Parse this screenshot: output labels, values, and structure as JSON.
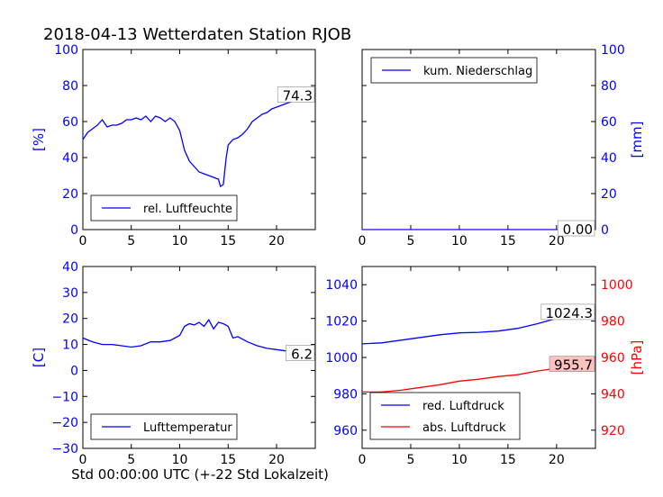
{
  "figure": {
    "title": "2018-04-13 Wetterdaten Station RJOB",
    "xlabel": "Std 00:00:00 UTC (+-22 Std Lokalzeit)"
  },
  "chart_data": [
    {
      "type": "line",
      "panel": "top-left",
      "ylabel": "[%]",
      "ylabel_color": "#0000ff",
      "xlim": [
        0,
        24
      ],
      "ylim": [
        0,
        100
      ],
      "xticks": [
        "0",
        "5",
        "10",
        "15",
        "20"
      ],
      "yticks": [
        "0",
        "20",
        "40",
        "60",
        "80",
        "100"
      ],
      "legend_placement": "lower-left",
      "annotation": "74.3",
      "series": [
        {
          "name": "rel. Luftfeuchte",
          "color": "#0000ff",
          "x": [
            0,
            0.5,
            1,
            1.5,
            2,
            2.5,
            3,
            3.5,
            4,
            4.5,
            5,
            5.5,
            6,
            6.5,
            7,
            7.5,
            8,
            8.5,
            9,
            9.5,
            10,
            10.5,
            11,
            11.5,
            12,
            12.5,
            13,
            13.5,
            14,
            14.2,
            14.5,
            14.8,
            15,
            15.5,
            16,
            16.5,
            17,
            17.5,
            18,
            18.5,
            19,
            19.5,
            20,
            20.5,
            21,
            21.5,
            22,
            22.5,
            23,
            23.5,
            24
          ],
          "y": [
            50,
            54,
            56,
            58,
            61,
            57,
            58,
            58,
            59,
            61,
            61,
            62,
            61,
            63,
            60,
            63,
            62,
            60,
            62,
            60,
            55,
            44,
            38,
            35,
            32,
            31,
            30,
            29,
            28,
            24,
            25,
            40,
            47,
            50,
            51,
            53,
            56,
            60,
            62,
            64,
            65,
            67,
            68,
            69,
            70,
            71,
            72,
            72,
            73,
            74,
            74.3
          ]
        }
      ]
    },
    {
      "type": "line",
      "panel": "top-right",
      "ylabel": "[mm]",
      "ylabel_color": "#0000ff",
      "xlim": [
        0,
        24
      ],
      "ylim": [
        0,
        100
      ],
      "xticks": [
        "0",
        "5",
        "10",
        "15",
        "20"
      ],
      "yticks": [
        "0",
        "20",
        "40",
        "60",
        "80",
        "100"
      ],
      "legend_placement": "upper-left",
      "annotation": "0.00",
      "series": [
        {
          "name": "kum. Niederschlag",
          "color": "#0000ff",
          "x": [
            0,
            24
          ],
          "y": [
            0,
            0
          ]
        }
      ]
    },
    {
      "type": "line",
      "panel": "bottom-left",
      "ylabel": "[C]",
      "ylabel_color": "#0000ff",
      "xlim": [
        0,
        24
      ],
      "ylim": [
        -30,
        40
      ],
      "xticks": [
        "0",
        "5",
        "10",
        "15",
        "20"
      ],
      "yticks": [
        "−30",
        "−20",
        "−10",
        "0",
        "10",
        "20",
        "30",
        "40"
      ],
      "legend_placement": "lower-left",
      "annotation": "6.2",
      "series": [
        {
          "name": "Lufttemperatur",
          "color": "#0000ff",
          "x": [
            0,
            1,
            2,
            3,
            4,
            5,
            6,
            7,
            8,
            9,
            10,
            10.5,
            11,
            11.5,
            12,
            12.5,
            13,
            13.5,
            14,
            14.5,
            15,
            15.5,
            16,
            17,
            18,
            19,
            20,
            21,
            22,
            23,
            24
          ],
          "y": [
            12.5,
            11,
            10,
            10,
            9.5,
            9,
            9.5,
            11,
            11,
            11.5,
            13.5,
            17,
            18,
            17.5,
            18.5,
            17,
            19.5,
            16,
            18.5,
            18,
            17,
            12.5,
            13,
            11,
            9.5,
            8.5,
            8,
            7.5,
            7.5,
            6.8,
            6.2
          ]
        }
      ]
    },
    {
      "type": "line",
      "panel": "bottom-right",
      "ylabel": "[hPa]",
      "ylabel_color": "#ff0000",
      "xlim": [
        0,
        24
      ],
      "ylim_left": [
        950,
        1050
      ],
      "ylim_right": [
        910,
        1010
      ],
      "xticks": [
        "0",
        "5",
        "10",
        "15",
        "20"
      ],
      "yticks_left": [
        "960",
        "980",
        "1000",
        "1020",
        "1040"
      ],
      "yticks_right": [
        "920",
        "940",
        "960",
        "980",
        "1000"
      ],
      "legend_placement": "lower-left",
      "annotation_left": "1024.3",
      "annotation_right": "955.7",
      "series": [
        {
          "name": "red. Luftdruck",
          "color": "#0000ff",
          "axis": "left",
          "x": [
            0,
            2,
            4,
            6,
            8,
            10,
            12,
            14,
            16,
            18,
            20,
            22,
            24
          ],
          "y": [
            1007.5,
            1008,
            1009.5,
            1011,
            1012.5,
            1013.5,
            1013.8,
            1014.5,
            1016,
            1018.5,
            1021.5,
            1023.5,
            1024.3
          ]
        },
        {
          "name": "abs. Luftdruck",
          "color": "#ff0000",
          "axis": "right",
          "x": [
            0,
            2,
            4,
            6,
            8,
            10,
            12,
            14,
            16,
            18,
            20,
            22,
            24
          ],
          "y": [
            941,
            941,
            942,
            943.5,
            945,
            947,
            948,
            949.5,
            950.5,
            952.5,
            954,
            955,
            955.7
          ]
        }
      ]
    }
  ]
}
